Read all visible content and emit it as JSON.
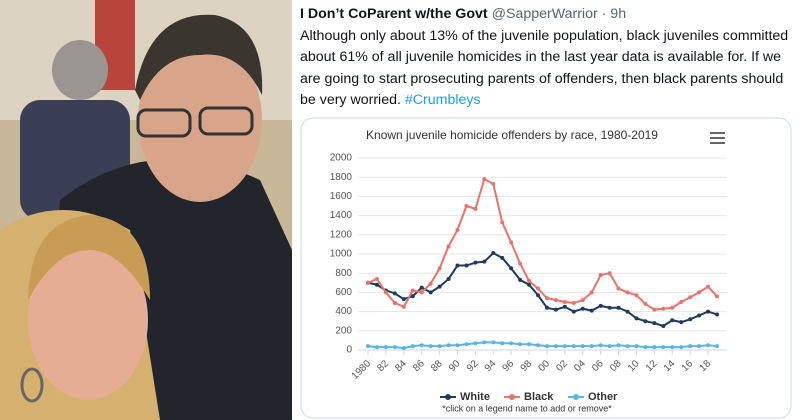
{
  "tweet": {
    "author": "I Don’t CoParent w/the Govt",
    "handle": "@SapperWarrior",
    "time": "· 9h",
    "text": "Although only about 13% of the juvenile population, black juveniles committed about 61% of all juvenile homicides in the last year data is available for. If we are going to start prosecuting parents of offenders, then black parents should be very worried.",
    "hashtag": "#Crumbleys"
  },
  "chart_data": {
    "type": "line",
    "title": "Known juvenile homicide offenders by race, 1980-2019",
    "x": [
      1980,
      1981,
      1982,
      1983,
      1984,
      1985,
      1986,
      1987,
      1988,
      1989,
      1990,
      1991,
      1992,
      1993,
      1994,
      1995,
      1996,
      1997,
      1998,
      1999,
      2000,
      2001,
      2002,
      2003,
      2004,
      2005,
      2006,
      2007,
      2008,
      2009,
      2010,
      2011,
      2012,
      2013,
      2014,
      2015,
      2016,
      2017,
      2018,
      2019
    ],
    "series": [
      {
        "name": "White",
        "color": "#1f3a5f",
        "values": [
          700,
          680,
          620,
          590,
          530,
          560,
          650,
          600,
          660,
          740,
          880,
          880,
          910,
          920,
          1010,
          960,
          850,
          730,
          680,
          570,
          440,
          420,
          450,
          400,
          430,
          410,
          460,
          440,
          440,
          400,
          330,
          300,
          280,
          250,
          310,
          290,
          320,
          360,
          400,
          370
        ]
      },
      {
        "name": "Black",
        "color": "#e8736c",
        "values": [
          700,
          740,
          600,
          490,
          450,
          620,
          600,
          690,
          850,
          1080,
          1250,
          1500,
          1470,
          1780,
          1730,
          1330,
          1120,
          900,
          720,
          640,
          540,
          520,
          500,
          490,
          520,
          600,
          780,
          800,
          640,
          600,
          570,
          480,
          420,
          430,
          440,
          500,
          550,
          600,
          660,
          560
        ]
      },
      {
        "name": "Other",
        "color": "#5ab4e5",
        "values": [
          40,
          30,
          30,
          30,
          20,
          40,
          50,
          40,
          40,
          50,
          50,
          60,
          70,
          80,
          80,
          70,
          70,
          60,
          60,
          50,
          40,
          40,
          40,
          40,
          40,
          40,
          50,
          40,
          50,
          40,
          40,
          30,
          30,
          30,
          30,
          30,
          40,
          40,
          50,
          40
        ]
      }
    ],
    "xlim": [
      1980,
      2019
    ],
    "xticks": [
      1980,
      {
        "value": 1982,
        "label": "82"
      },
      {
        "value": 1984,
        "label": "84"
      },
      {
        "value": 1986,
        "label": "86"
      },
      {
        "value": 1988,
        "label": "88"
      },
      {
        "value": 1990,
        "label": "90"
      },
      {
        "value": 1992,
        "label": "92"
      },
      {
        "value": 1994,
        "label": "94"
      },
      {
        "value": 1996,
        "label": "96"
      },
      {
        "value": 1998,
        "label": "98"
      },
      {
        "value": 2000,
        "label": "00"
      },
      {
        "value": 2002,
        "label": "02"
      },
      {
        "value": 2004,
        "label": "04"
      },
      {
        "value": 2006,
        "label": "06"
      },
      {
        "value": 2008,
        "label": "08"
      },
      {
        "value": 2010,
        "label": "10"
      },
      {
        "value": 2012,
        "label": "12"
      },
      {
        "value": 2014,
        "label": "14"
      },
      {
        "value": 2016,
        "label": "16"
      },
      {
        "value": 2018,
        "label": "18"
      }
    ],
    "ylim": [
      0,
      2000
    ],
    "yticks": [
      0,
      200,
      400,
      600,
      800,
      1000,
      1200,
      1400,
      1600,
      1800,
      2000
    ],
    "grid": true,
    "note": "*click on a legend name to add or remove*"
  }
}
